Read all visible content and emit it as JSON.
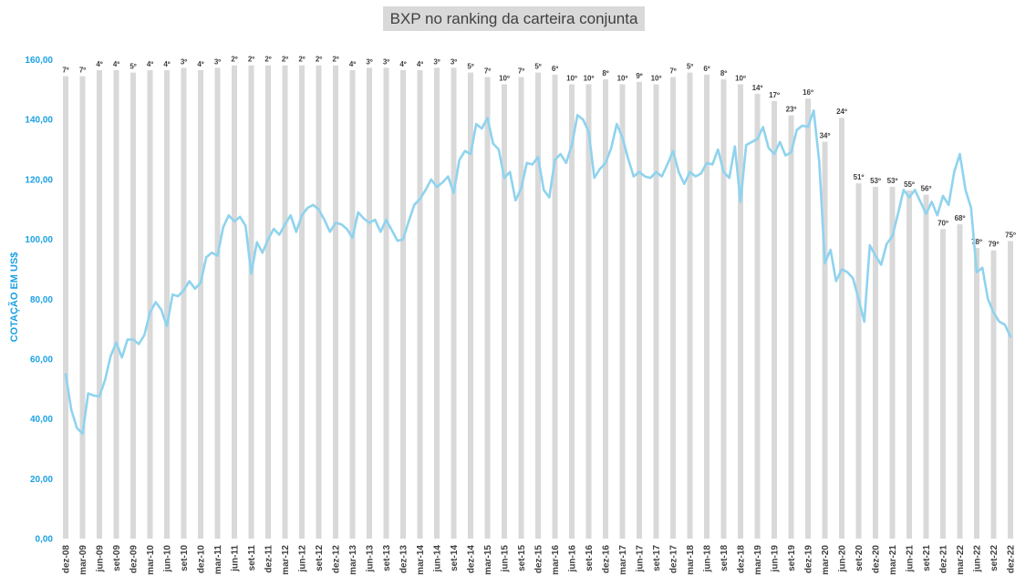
{
  "chart_data": {
    "type": "bar+line",
    "title": "BXP no ranking da carteira conjunta",
    "ylabel": "COTAÇÃO EM US$",
    "ylim": [
      0,
      160
    ],
    "yticks": [
      "0,00",
      "20,00",
      "40,00",
      "60,00",
      "80,00",
      "100,00",
      "120,00",
      "140,00",
      "160,00"
    ],
    "grid": false,
    "legend": "none",
    "bar_color": "#d9d9d9",
    "line_color": "#8fd3ee",
    "months": 169,
    "x_labels": [
      "dez-08",
      "mar-09",
      "jun-09",
      "set-09",
      "dez-09",
      "mar-10",
      "jun-10",
      "set-10",
      "dez-10",
      "mar-11",
      "jun-11",
      "set-11",
      "dez-11",
      "mar-12",
      "jun-12",
      "set-12",
      "dez-12",
      "mar-13",
      "jun-13",
      "set-13",
      "dez-13",
      "mar-14",
      "jun-14",
      "set-14",
      "dez-14",
      "mar-15",
      "jun-15",
      "set-15",
      "dez-15",
      "mar-16",
      "jun-16",
      "set-16",
      "dez-16",
      "mar-17",
      "jun-17",
      "set-17",
      "dez-17",
      "mar-18",
      "jun-18",
      "set-18",
      "dez-18",
      "mar-19",
      "jun-19",
      "set-19",
      "dez-19",
      "mar-20",
      "jun-20",
      "set-20",
      "dez-20",
      "mar-21",
      "jun-21",
      "set-21",
      "dez-21",
      "mar-22",
      "jun-22",
      "set-22",
      "dez-22"
    ],
    "bars": [
      {
        "x": "dez-08",
        "height": 154.5,
        "rank": "7º"
      },
      {
        "x": "mar-09",
        "height": 154.5,
        "rank": "7º"
      },
      {
        "x": "jun-09",
        "height": 156.5,
        "rank": "4º"
      },
      {
        "x": "set-09",
        "height": 156.5,
        "rank": "4º"
      },
      {
        "x": "dez-09",
        "height": 155.7,
        "rank": "5º"
      },
      {
        "x": "mar-10",
        "height": 156.5,
        "rank": "4º"
      },
      {
        "x": "jun-10",
        "height": 156.5,
        "rank": "4º"
      },
      {
        "x": "set-10",
        "height": 157.3,
        "rank": "3º"
      },
      {
        "x": "dez-10",
        "height": 156.5,
        "rank": "4º"
      },
      {
        "x": "mar-11",
        "height": 157.3,
        "rank": "3º"
      },
      {
        "x": "jun-11",
        "height": 158.1,
        "rank": "2º"
      },
      {
        "x": "set-11",
        "height": 158.1,
        "rank": "2º"
      },
      {
        "x": "dez-11",
        "height": 158.1,
        "rank": "2º"
      },
      {
        "x": "mar-12",
        "height": 158.1,
        "rank": "2º"
      },
      {
        "x": "jun-12",
        "height": 158.1,
        "rank": "2º"
      },
      {
        "x": "set-12",
        "height": 158.1,
        "rank": "2º"
      },
      {
        "x": "dez-12",
        "height": 158.1,
        "rank": "2º"
      },
      {
        "x": "mar-13",
        "height": 156.5,
        "rank": "4º"
      },
      {
        "x": "jun-13",
        "height": 157.3,
        "rank": "3º"
      },
      {
        "x": "set-13",
        "height": 157.3,
        "rank": "3º"
      },
      {
        "x": "dez-13",
        "height": 156.5,
        "rank": "4º"
      },
      {
        "x": "mar-14",
        "height": 156.5,
        "rank": "4º"
      },
      {
        "x": "jun-14",
        "height": 157.3,
        "rank": "3º"
      },
      {
        "x": "set-14",
        "height": 157.3,
        "rank": "3º"
      },
      {
        "x": "dez-14",
        "height": 155.7,
        "rank": "5º"
      },
      {
        "x": "mar-15",
        "height": 154.2,
        "rank": "7º"
      },
      {
        "x": "jun-15",
        "height": 151.8,
        "rank": "10º"
      },
      {
        "x": "set-15",
        "height": 154.2,
        "rank": "7º"
      },
      {
        "x": "dez-15",
        "height": 155.7,
        "rank": "5º"
      },
      {
        "x": "mar-16",
        "height": 155.0,
        "rank": "6º"
      },
      {
        "x": "jun-16",
        "height": 151.8,
        "rank": "10º"
      },
      {
        "x": "set-16",
        "height": 151.8,
        "rank": "10º"
      },
      {
        "x": "dez-16",
        "height": 153.4,
        "rank": "8º"
      },
      {
        "x": "mar-17",
        "height": 151.8,
        "rank": "10º"
      },
      {
        "x": "jun-17",
        "height": 152.6,
        "rank": "9º"
      },
      {
        "x": "set-17",
        "height": 151.8,
        "rank": "10º"
      },
      {
        "x": "dez-17",
        "height": 154.2,
        "rank": "7º"
      },
      {
        "x": "mar-18",
        "height": 155.7,
        "rank": "5º"
      },
      {
        "x": "jun-18",
        "height": 155.0,
        "rank": "6º"
      },
      {
        "x": "set-18",
        "height": 153.4,
        "rank": "8º"
      },
      {
        "x": "dez-18",
        "height": 151.8,
        "rank": "10º"
      },
      {
        "x": "mar-19",
        "height": 148.6,
        "rank": "14º"
      },
      {
        "x": "jun-19",
        "height": 146.2,
        "rank": "17º"
      },
      {
        "x": "set-19",
        "height": 141.4,
        "rank": "23º"
      },
      {
        "x": "dez-19",
        "height": 147.0,
        "rank": "16º"
      },
      {
        "x": "mar-20",
        "height": 132.6,
        "rank": "34º"
      },
      {
        "x": "jun-20",
        "height": 140.6,
        "rank": "24º"
      },
      {
        "x": "set-20",
        "height": 118.7,
        "rank": "51º"
      },
      {
        "x": "dez-20",
        "height": 117.5,
        "rank": "53º"
      },
      {
        "x": "mar-21",
        "height": 117.5,
        "rank": "53º"
      },
      {
        "x": "jun-21",
        "height": 116.3,
        "rank": "55º"
      },
      {
        "x": "set-21",
        "height": 114.9,
        "rank": "56º"
      },
      {
        "x": "dez-21",
        "height": 103.4,
        "rank": "70º"
      },
      {
        "x": "mar-22",
        "height": 105.0,
        "rank": "68º"
      },
      {
        "x": "jun-22",
        "height": 97.1,
        "rank": "78º"
      },
      {
        "x": "set-22",
        "height": 96.3,
        "rank": "79º"
      },
      {
        "x": "dez-22",
        "height": 99.4,
        "rank": "75º"
      }
    ],
    "line": [
      {
        "m": 0,
        "y": 55.0
      },
      {
        "m": 1,
        "y": 43.0
      },
      {
        "m": 2,
        "y": 37.0
      },
      {
        "m": 3,
        "y": 35.0
      },
      {
        "m": 4,
        "y": 48.5
      },
      {
        "m": 5,
        "y": 47.8
      },
      {
        "m": 6,
        "y": 47.5
      },
      {
        "m": 7,
        "y": 53.0
      },
      {
        "m": 8,
        "y": 61.0
      },
      {
        "m": 9,
        "y": 65.5
      },
      {
        "m": 10,
        "y": 60.5
      },
      {
        "m": 11,
        "y": 66.5
      },
      {
        "m": 12,
        "y": 66.5
      },
      {
        "m": 13,
        "y": 65.0
      },
      {
        "m": 14,
        "y": 68.0
      },
      {
        "m": 15,
        "y": 75.5
      },
      {
        "m": 16,
        "y": 79.0
      },
      {
        "m": 17,
        "y": 76.5
      },
      {
        "m": 18,
        "y": 71.0
      },
      {
        "m": 19,
        "y": 81.5
      },
      {
        "m": 20,
        "y": 81.0
      },
      {
        "m": 21,
        "y": 83.0
      },
      {
        "m": 22,
        "y": 86.0
      },
      {
        "m": 23,
        "y": 83.5
      },
      {
        "m": 24,
        "y": 85.5
      },
      {
        "m": 25,
        "y": 94.0
      },
      {
        "m": 26,
        "y": 95.5
      },
      {
        "m": 27,
        "y": 94.5
      },
      {
        "m": 28,
        "y": 104.0
      },
      {
        "m": 29,
        "y": 108.0
      },
      {
        "m": 30,
        "y": 106.0
      },
      {
        "m": 31,
        "y": 107.5
      },
      {
        "m": 32,
        "y": 104.5
      },
      {
        "m": 33,
        "y": 88.5
      },
      {
        "m": 34,
        "y": 99.0
      },
      {
        "m": 35,
        "y": 95.5
      },
      {
        "m": 36,
        "y": 100.0
      },
      {
        "m": 37,
        "y": 103.5
      },
      {
        "m": 38,
        "y": 101.5
      },
      {
        "m": 39,
        "y": 105.0
      },
      {
        "m": 40,
        "y": 108.0
      },
      {
        "m": 41,
        "y": 102.5
      },
      {
        "m": 42,
        "y": 108.0
      },
      {
        "m": 43,
        "y": 110.5
      },
      {
        "m": 44,
        "y": 111.5
      },
      {
        "m": 45,
        "y": 110.0
      },
      {
        "m": 46,
        "y": 106.5
      },
      {
        "m": 47,
        "y": 102.5
      },
      {
        "m": 48,
        "y": 105.5
      },
      {
        "m": 49,
        "y": 105.0
      },
      {
        "m": 50,
        "y": 103.5
      },
      {
        "m": 51,
        "y": 100.5
      },
      {
        "m": 52,
        "y": 109.0
      },
      {
        "m": 53,
        "y": 107.0
      },
      {
        "m": 54,
        "y": 105.5
      },
      {
        "m": 55,
        "y": 106.5
      },
      {
        "m": 56,
        "y": 102.5
      },
      {
        "m": 57,
        "y": 106.5
      },
      {
        "m": 58,
        "y": 103.0
      },
      {
        "m": 59,
        "y": 99.5
      },
      {
        "m": 60,
        "y": 100.0
      },
      {
        "m": 61,
        "y": 106.0
      },
      {
        "m": 62,
        "y": 111.5
      },
      {
        "m": 63,
        "y": 113.5
      },
      {
        "m": 64,
        "y": 116.5
      },
      {
        "m": 65,
        "y": 120.0
      },
      {
        "m": 66,
        "y": 117.5
      },
      {
        "m": 67,
        "y": 119.0
      },
      {
        "m": 68,
        "y": 121.0
      },
      {
        "m": 69,
        "y": 115.5
      },
      {
        "m": 70,
        "y": 126.5
      },
      {
        "m": 71,
        "y": 129.5
      },
      {
        "m": 72,
        "y": 128.5
      },
      {
        "m": 73,
        "y": 138.5
      },
      {
        "m": 74,
        "y": 137.0
      },
      {
        "m": 75,
        "y": 140.5
      },
      {
        "m": 76,
        "y": 132.0
      },
      {
        "m": 77,
        "y": 130.0
      },
      {
        "m": 78,
        "y": 120.5
      },
      {
        "m": 79,
        "y": 122.5
      },
      {
        "m": 80,
        "y": 113.0
      },
      {
        "m": 81,
        "y": 117.0
      },
      {
        "m": 82,
        "y": 125.5
      },
      {
        "m": 83,
        "y": 125.0
      },
      {
        "m": 84,
        "y": 127.5
      },
      {
        "m": 85,
        "y": 116.5
      },
      {
        "m": 86,
        "y": 114.0
      },
      {
        "m": 87,
        "y": 126.5
      },
      {
        "m": 88,
        "y": 128.5
      },
      {
        "m": 89,
        "y": 125.5
      },
      {
        "m": 90,
        "y": 131.5
      },
      {
        "m": 91,
        "y": 141.5
      },
      {
        "m": 92,
        "y": 140.0
      },
      {
        "m": 93,
        "y": 136.0
      },
      {
        "m": 94,
        "y": 120.5
      },
      {
        "m": 95,
        "y": 123.5
      },
      {
        "m": 96,
        "y": 125.5
      },
      {
        "m": 97,
        "y": 130.5
      },
      {
        "m": 98,
        "y": 138.5
      },
      {
        "m": 99,
        "y": 134.0
      },
      {
        "m": 100,
        "y": 127.0
      },
      {
        "m": 101,
        "y": 121.0
      },
      {
        "m": 102,
        "y": 122.5
      },
      {
        "m": 103,
        "y": 121.0
      },
      {
        "m": 104,
        "y": 120.5
      },
      {
        "m": 105,
        "y": 122.5
      },
      {
        "m": 106,
        "y": 121.0
      },
      {
        "m": 107,
        "y": 125.0
      },
      {
        "m": 108,
        "y": 129.5
      },
      {
        "m": 109,
        "y": 122.5
      },
      {
        "m": 110,
        "y": 118.5
      },
      {
        "m": 111,
        "y": 122.5
      },
      {
        "m": 112,
        "y": 121.0
      },
      {
        "m": 113,
        "y": 122.0
      },
      {
        "m": 114,
        "y": 125.5
      },
      {
        "m": 115,
        "y": 125.0
      },
      {
        "m": 116,
        "y": 130.0
      },
      {
        "m": 117,
        "y": 122.5
      },
      {
        "m": 118,
        "y": 120.5
      },
      {
        "m": 119,
        "y": 131.0
      },
      {
        "m": 120,
        "y": 112.5
      },
      {
        "m": 121,
        "y": 131.5
      },
      {
        "m": 122,
        "y": 132.5
      },
      {
        "m": 123,
        "y": 133.5
      },
      {
        "m": 124,
        "y": 137.5
      },
      {
        "m": 125,
        "y": 130.5
      },
      {
        "m": 126,
        "y": 128.5
      },
      {
        "m": 127,
        "y": 132.5
      },
      {
        "m": 128,
        "y": 128.0
      },
      {
        "m": 129,
        "y": 129.0
      },
      {
        "m": 130,
        "y": 136.5
      },
      {
        "m": 131,
        "y": 138.0
      },
      {
        "m": 132,
        "y": 137.5
      },
      {
        "m": 133,
        "y": 143.0
      },
      {
        "m": 134,
        "y": 126.0
      },
      {
        "m": 135,
        "y": 92.0
      },
      {
        "m": 136,
        "y": 96.5
      },
      {
        "m": 137,
        "y": 86.0
      },
      {
        "m": 138,
        "y": 90.0
      },
      {
        "m": 139,
        "y": 89.0
      },
      {
        "m": 140,
        "y": 87.0
      },
      {
        "m": 141,
        "y": 80.0
      },
      {
        "m": 142,
        "y": 72.5
      },
      {
        "m": 143,
        "y": 98.0
      },
      {
        "m": 144,
        "y": 94.5
      },
      {
        "m": 145,
        "y": 91.5
      },
      {
        "m": 146,
        "y": 98.5
      },
      {
        "m": 147,
        "y": 101.0
      },
      {
        "m": 148,
        "y": 108.5
      },
      {
        "m": 149,
        "y": 116.5
      },
      {
        "m": 150,
        "y": 114.0
      },
      {
        "m": 151,
        "y": 116.5
      },
      {
        "m": 152,
        "y": 112.5
      },
      {
        "m": 153,
        "y": 108.5
      },
      {
        "m": 154,
        "y": 112.5
      },
      {
        "m": 155,
        "y": 108.0
      },
      {
        "m": 156,
        "y": 114.5
      },
      {
        "m": 157,
        "y": 111.5
      },
      {
        "m": 158,
        "y": 122.5
      },
      {
        "m": 159,
        "y": 128.5
      },
      {
        "m": 160,
        "y": 116.5
      },
      {
        "m": 161,
        "y": 110.5
      },
      {
        "m": 162,
        "y": 89.0
      },
      {
        "m": 163,
        "y": 90.5
      },
      {
        "m": 164,
        "y": 80.0
      },
      {
        "m": 165,
        "y": 75.5
      },
      {
        "m": 166,
        "y": 72.5
      },
      {
        "m": 167,
        "y": 71.5
      },
      {
        "m": 168,
        "y": 67.5
      }
    ]
  }
}
